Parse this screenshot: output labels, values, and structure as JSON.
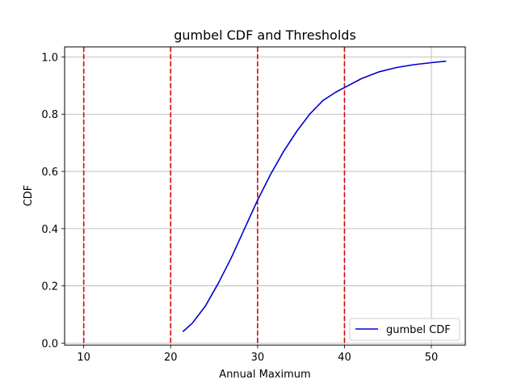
{
  "chart_data": {
    "type": "line",
    "title": "gumbel CDF and Thresholds",
    "xlabel": "Annual Maximum",
    "ylabel": "CDF",
    "xlim": [
      7.8,
      53.9
    ],
    "ylim": [
      -0.007,
      1.035
    ],
    "xticks": [
      10,
      20,
      30,
      40,
      50
    ],
    "yticks": [
      0.0,
      0.2,
      0.4,
      0.6,
      0.8,
      1.0
    ],
    "grid": true,
    "legend": {
      "position": "lower-right",
      "entries": [
        "gumbel CDF"
      ]
    },
    "series": [
      {
        "name": "gumbel CDF",
        "color": "#0000cc",
        "style": "solid",
        "x": [
          21.4,
          22.5,
          24,
          25.5,
          27,
          28.5,
          30,
          31.5,
          33,
          34.5,
          36,
          37.5,
          39,
          40,
          42,
          44,
          46,
          48,
          50,
          51.7
        ],
        "y": [
          0.04,
          0.07,
          0.13,
          0.21,
          0.3,
          0.4,
          0.5,
          0.59,
          0.67,
          0.74,
          0.8,
          0.847,
          0.877,
          0.893,
          0.925,
          0.948,
          0.963,
          0.973,
          0.98,
          0.985
        ]
      }
    ],
    "thresholds": {
      "color": "#e00000",
      "style": "dashed",
      "x": [
        10,
        20,
        30,
        40
      ]
    }
  }
}
